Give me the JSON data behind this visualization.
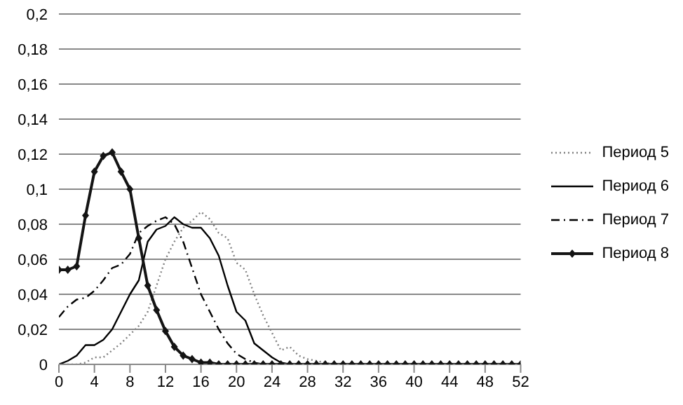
{
  "chart_data": {
    "type": "line",
    "x": [
      0,
      1,
      2,
      3,
      4,
      5,
      6,
      7,
      8,
      9,
      10,
      11,
      12,
      13,
      14,
      15,
      16,
      17,
      18,
      19,
      20,
      21,
      22,
      23,
      24,
      25,
      26,
      27,
      28,
      29,
      30,
      31,
      32,
      33,
      34,
      35,
      36,
      37,
      38,
      39,
      40,
      41,
      42,
      43,
      44,
      45,
      46,
      47,
      48,
      49,
      50,
      51,
      52
    ],
    "xlim": [
      0,
      52
    ],
    "xticks": [
      0,
      4,
      8,
      12,
      16,
      20,
      24,
      28,
      32,
      36,
      40,
      44,
      48,
      52
    ],
    "ylim": [
      0,
      0.2
    ],
    "yticks": [
      {
        "value": 0,
        "label": "0"
      },
      {
        "value": 0.02,
        "label": "0,02"
      },
      {
        "value": 0.04,
        "label": "0,04"
      },
      {
        "value": 0.06,
        "label": "0,06"
      },
      {
        "value": 0.08,
        "label": "0,08"
      },
      {
        "value": 0.1,
        "label": "0,1"
      },
      {
        "value": 0.12,
        "label": "0,12"
      },
      {
        "value": 0.14,
        "label": "0,14"
      },
      {
        "value": 0.16,
        "label": "0,16"
      },
      {
        "value": 0.18,
        "label": "0,18"
      },
      {
        "value": 0.2,
        "label": "0,2"
      }
    ],
    "grid": "y",
    "legend": "right",
    "series": [
      {
        "name": "Период 5",
        "color": "#808080",
        "line_style": "dotted",
        "marker": "none",
        "values": [
          0,
          0,
          0,
          0.001,
          0.004,
          0.004,
          0.008,
          0.012,
          0.017,
          0.022,
          0.03,
          0.045,
          0.06,
          0.07,
          0.078,
          0.082,
          0.087,
          0.083,
          0.075,
          0.072,
          0.058,
          0.054,
          0.04,
          0.028,
          0.018,
          0.008,
          0.01,
          0.005,
          0.003,
          0.002,
          0.001,
          0,
          0,
          0,
          0,
          0,
          0,
          0,
          0,
          0,
          0,
          0,
          0,
          0,
          0,
          0,
          0,
          0,
          0,
          0,
          0,
          0,
          0
        ]
      },
      {
        "name": "Период 6",
        "color": "#000000",
        "line_style": "solid",
        "marker": "none",
        "values": [
          0,
          0.002,
          0.005,
          0.011,
          0.011,
          0.014,
          0.02,
          0.03,
          0.04,
          0.048,
          0.07,
          0.077,
          0.079,
          0.084,
          0.08,
          0.078,
          0.078,
          0.072,
          0.062,
          0.045,
          0.03,
          0.025,
          0.012,
          0.008,
          0.004,
          0.001,
          0,
          0,
          0,
          0,
          0,
          0,
          0,
          0,
          0,
          0,
          0,
          0,
          0,
          0,
          0,
          0,
          0,
          0,
          0,
          0,
          0,
          0,
          0,
          0,
          0,
          0,
          0
        ]
      },
      {
        "name": "Период 7",
        "color": "#000000",
        "line_style": "dashdot",
        "marker": "none",
        "values": [
          0.027,
          0.033,
          0.037,
          0.038,
          0.042,
          0.048,
          0.055,
          0.057,
          0.063,
          0.075,
          0.079,
          0.082,
          0.084,
          0.08,
          0.07,
          0.055,
          0.04,
          0.03,
          0.02,
          0.012,
          0.006,
          0.003,
          0.001,
          0,
          0,
          0,
          0,
          0,
          0,
          0,
          0,
          0,
          0,
          0,
          0,
          0,
          0,
          0,
          0,
          0,
          0,
          0,
          0,
          0,
          0,
          0,
          0,
          0,
          0,
          0,
          0,
          0,
          0
        ]
      },
      {
        "name": "Период 8",
        "color": "#141414",
        "line_style": "solid",
        "marker": "diamond",
        "values": [
          0.054,
          0.054,
          0.056,
          0.085,
          0.11,
          0.119,
          0.121,
          0.11,
          0.1,
          0.072,
          0.045,
          0.031,
          0.019,
          0.01,
          0.005,
          0.003,
          0.001,
          0.001,
          0,
          0,
          0,
          0,
          0,
          0,
          0,
          0,
          0,
          0,
          0,
          0,
          0,
          0,
          0,
          0,
          0,
          0,
          0,
          0,
          0,
          0,
          0,
          0,
          0,
          0,
          0,
          0,
          0,
          0,
          0,
          0,
          0,
          0,
          0
        ]
      }
    ]
  }
}
